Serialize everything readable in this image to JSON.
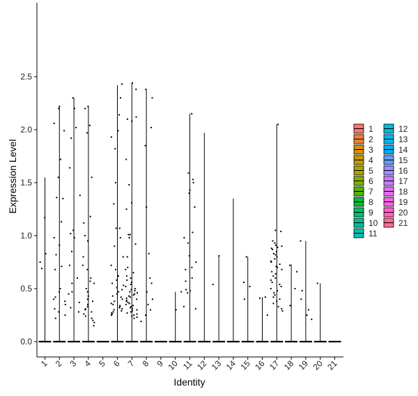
{
  "chart_data": {
    "type": "violin-jitter",
    "xlabel": "Identity",
    "ylabel": "Expression Level",
    "ylim": [
      -0.1,
      2.55
    ],
    "y_ticks": [
      0.0,
      0.5,
      1.0,
      1.5,
      2.0,
      2.5
    ],
    "y_tick_labels": [
      "0.0",
      "0.5",
      "1.0",
      "1.5",
      "2.0",
      "2.5"
    ],
    "categories": [
      "1",
      "2",
      "3",
      "4",
      "5",
      "6",
      "7",
      "8",
      "9",
      "10",
      "11",
      "12",
      "13",
      "14",
      "15",
      "16",
      "17",
      "18",
      "19",
      "20",
      "21"
    ],
    "max_values": [
      1.55,
      2.22,
      2.3,
      2.22,
      0.0,
      2.42,
      2.44,
      2.38,
      0.0,
      0.47,
      2.15,
      1.97,
      0.81,
      1.35,
      0.8,
      0.42,
      2.05,
      0.73,
      0.95,
      0.55,
      0.0
    ],
    "legend_colors": [
      "#F8766D",
      "#EB8335",
      "#DA8E00",
      "#C49A00",
      "#A9A400",
      "#86AC00",
      "#53B400",
      "#00BA38",
      "#00BE6D",
      "#00C094",
      "#00C0B8",
      "#00BDD6",
      "#00B6EB",
      "#00ABFD",
      "#619CFF",
      "#9D8FFF",
      "#C77CFF",
      "#E46DF5",
      "#F564E3",
      "#FF62C7",
      "#FF6C91"
    ],
    "points": [
      {
        "cat": 1,
        "y": 1.17
      },
      {
        "cat": 1,
        "y": 0.83
      },
      {
        "cat": 1,
        "y": 0.75
      },
      {
        "cat": 1,
        "y": 0.69
      },
      {
        "cat": 2,
        "y": 2.2
      },
      {
        "cat": 2,
        "y": 2.22
      },
      {
        "cat": 2,
        "y": 2.06
      },
      {
        "cat": 2,
        "y": 1.99
      },
      {
        "cat": 2,
        "y": 1.72
      },
      {
        "cat": 2,
        "y": 1.55
      },
      {
        "cat": 2,
        "y": 1.36
      },
      {
        "cat": 2,
        "y": 1.35
      },
      {
        "cat": 2,
        "y": 1.13
      },
      {
        "cat": 2,
        "y": 0.98
      },
      {
        "cat": 2,
        "y": 0.91
      },
      {
        "cat": 2,
        "y": 0.82
      },
      {
        "cat": 2,
        "y": 0.71
      },
      {
        "cat": 2,
        "y": 0.68
      },
      {
        "cat": 2,
        "y": 0.5
      },
      {
        "cat": 2,
        "y": 0.47
      },
      {
        "cat": 2,
        "y": 0.42
      },
      {
        "cat": 2,
        "y": 0.4
      },
      {
        "cat": 2,
        "y": 0.38
      },
      {
        "cat": 2,
        "y": 0.35
      },
      {
        "cat": 2,
        "y": 0.31
      },
      {
        "cat": 2,
        "y": 0.28
      },
      {
        "cat": 2,
        "y": 0.25
      },
      {
        "cat": 2,
        "y": 0.22
      },
      {
        "cat": 3,
        "y": 2.3
      },
      {
        "cat": 3,
        "y": 2.2
      },
      {
        "cat": 3,
        "y": 2.02
      },
      {
        "cat": 3,
        "y": 1.92
      },
      {
        "cat": 3,
        "y": 1.64
      },
      {
        "cat": 3,
        "y": 1.38
      },
      {
        "cat": 3,
        "y": 1.05
      },
      {
        "cat": 3,
        "y": 1.02
      },
      {
        "cat": 3,
        "y": 0.98
      },
      {
        "cat": 3,
        "y": 0.85
      },
      {
        "cat": 3,
        "y": 0.72
      },
      {
        "cat": 3,
        "y": 0.6
      },
      {
        "cat": 3,
        "y": 0.55
      },
      {
        "cat": 3,
        "y": 0.47
      },
      {
        "cat": 3,
        "y": 0.45
      },
      {
        "cat": 3,
        "y": 0.37
      },
      {
        "cat": 3,
        "y": 0.32
      },
      {
        "cat": 3,
        "y": 0.28
      },
      {
        "cat": 4,
        "y": 2.22
      },
      {
        "cat": 4,
        "y": 2.2
      },
      {
        "cat": 4,
        "y": 2.04
      },
      {
        "cat": 4,
        "y": 1.97
      },
      {
        "cat": 4,
        "y": 1.55
      },
      {
        "cat": 4,
        "y": 1.18
      },
      {
        "cat": 4,
        "y": 1.12
      },
      {
        "cat": 4,
        "y": 1.0
      },
      {
        "cat": 4,
        "y": 0.95
      },
      {
        "cat": 4,
        "y": 0.8
      },
      {
        "cat": 4,
        "y": 0.72
      },
      {
        "cat": 4,
        "y": 0.68
      },
      {
        "cat": 4,
        "y": 0.6
      },
      {
        "cat": 4,
        "y": 0.57
      },
      {
        "cat": 4,
        "y": 0.55
      },
      {
        "cat": 4,
        "y": 0.5
      },
      {
        "cat": 4,
        "y": 0.47
      },
      {
        "cat": 4,
        "y": 0.43
      },
      {
        "cat": 4,
        "y": 0.4
      },
      {
        "cat": 4,
        "y": 0.38
      },
      {
        "cat": 4,
        "y": 0.35
      },
      {
        "cat": 4,
        "y": 0.33
      },
      {
        "cat": 4,
        "y": 0.31
      },
      {
        "cat": 4,
        "y": 0.3
      },
      {
        "cat": 4,
        "y": 0.28
      },
      {
        "cat": 4,
        "y": 0.26
      },
      {
        "cat": 4,
        "y": 0.24
      },
      {
        "cat": 4,
        "y": 0.22
      },
      {
        "cat": 4,
        "y": 0.2
      },
      {
        "cat": 4,
        "y": 0.18
      },
      {
        "cat": 4,
        "y": 0.15
      },
      {
        "cat": 6,
        "y": 2.43
      },
      {
        "cat": 6,
        "y": 2.3
      },
      {
        "cat": 6,
        "y": 2.14
      },
      {
        "cat": 6,
        "y": 1.99
      },
      {
        "cat": 6,
        "y": 1.93
      },
      {
        "cat": 6,
        "y": 1.82
      },
      {
        "cat": 6,
        "y": 1.5
      },
      {
        "cat": 6,
        "y": 1.3
      },
      {
        "cat": 6,
        "y": 1.07
      },
      {
        "cat": 6,
        "y": 1.07
      },
      {
        "cat": 6,
        "y": 0.98
      },
      {
        "cat": 6,
        "y": 0.9
      },
      {
        "cat": 6,
        "y": 0.8
      },
      {
        "cat": 6,
        "y": 0.72
      },
      {
        "cat": 6,
        "y": 0.68
      },
      {
        "cat": 6,
        "y": 0.62
      },
      {
        "cat": 6,
        "y": 0.58
      },
      {
        "cat": 6,
        "y": 0.55
      },
      {
        "cat": 6,
        "y": 0.53
      },
      {
        "cat": 6,
        "y": 0.51
      },
      {
        "cat": 6,
        "y": 0.49
      },
      {
        "cat": 6,
        "y": 0.47
      },
      {
        "cat": 6,
        "y": 0.45
      },
      {
        "cat": 6,
        "y": 0.43
      },
      {
        "cat": 6,
        "y": 0.42
      },
      {
        "cat": 6,
        "y": 0.4
      },
      {
        "cat": 6,
        "y": 0.38
      },
      {
        "cat": 6,
        "y": 0.36
      },
      {
        "cat": 6,
        "y": 0.35
      },
      {
        "cat": 6,
        "y": 0.34
      },
      {
        "cat": 6,
        "y": 0.33
      },
      {
        "cat": 6,
        "y": 0.32
      },
      {
        "cat": 6,
        "y": 0.31
      },
      {
        "cat": 6,
        "y": 0.3
      },
      {
        "cat": 6,
        "y": 0.29
      },
      {
        "cat": 6,
        "y": 0.28
      },
      {
        "cat": 6,
        "y": 0.27
      },
      {
        "cat": 6,
        "y": 0.26
      },
      {
        "cat": 6,
        "y": 0.25
      },
      {
        "cat": 7,
        "y": 2.44
      },
      {
        "cat": 7,
        "y": 2.38
      },
      {
        "cat": 7,
        "y": 2.12
      },
      {
        "cat": 7,
        "y": 2.1
      },
      {
        "cat": 7,
        "y": 2.08
      },
      {
        "cat": 7,
        "y": 1.72
      },
      {
        "cat": 7,
        "y": 1.48
      },
      {
        "cat": 7,
        "y": 1.31
      },
      {
        "cat": 7,
        "y": 1.25
      },
      {
        "cat": 7,
        "y": 1.01
      },
      {
        "cat": 7,
        "y": 1.01
      },
      {
        "cat": 7,
        "y": 0.98
      },
      {
        "cat": 7,
        "y": 0.92
      },
      {
        "cat": 7,
        "y": 0.8
      },
      {
        "cat": 7,
        "y": 0.7
      },
      {
        "cat": 7,
        "y": 0.68
      },
      {
        "cat": 7,
        "y": 0.65
      },
      {
        "cat": 7,
        "y": 0.62
      },
      {
        "cat": 7,
        "y": 0.6
      },
      {
        "cat": 7,
        "y": 0.58
      },
      {
        "cat": 7,
        "y": 0.56
      },
      {
        "cat": 7,
        "y": 0.54
      },
      {
        "cat": 7,
        "y": 0.52
      },
      {
        "cat": 7,
        "y": 0.5
      },
      {
        "cat": 7,
        "y": 0.49
      },
      {
        "cat": 7,
        "y": 0.48
      },
      {
        "cat": 7,
        "y": 0.47
      },
      {
        "cat": 7,
        "y": 0.46
      },
      {
        "cat": 7,
        "y": 0.45
      },
      {
        "cat": 7,
        "y": 0.44
      },
      {
        "cat": 7,
        "y": 0.43
      },
      {
        "cat": 7,
        "y": 0.42
      },
      {
        "cat": 7,
        "y": 0.41
      },
      {
        "cat": 7,
        "y": 0.4
      },
      {
        "cat": 7,
        "y": 0.39
      },
      {
        "cat": 7,
        "y": 0.38
      },
      {
        "cat": 7,
        "y": 0.37
      },
      {
        "cat": 7,
        "y": 0.36
      },
      {
        "cat": 7,
        "y": 0.35
      },
      {
        "cat": 7,
        "y": 0.34
      },
      {
        "cat": 7,
        "y": 0.33
      },
      {
        "cat": 7,
        "y": 0.32
      },
      {
        "cat": 7,
        "y": 0.31
      },
      {
        "cat": 7,
        "y": 0.3
      },
      {
        "cat": 7,
        "y": 0.29
      },
      {
        "cat": 7,
        "y": 0.28
      },
      {
        "cat": 7,
        "y": 0.27
      },
      {
        "cat": 7,
        "y": 0.26
      },
      {
        "cat": 7,
        "y": 0.25
      },
      {
        "cat": 7,
        "y": 0.24
      },
      {
        "cat": 7,
        "y": 0.23
      },
      {
        "cat": 7,
        "y": 0.22
      },
      {
        "cat": 8,
        "y": 2.38
      },
      {
        "cat": 8,
        "y": 2.3
      },
      {
        "cat": 8,
        "y": 2.02
      },
      {
        "cat": 8,
        "y": 1.85
      },
      {
        "cat": 8,
        "y": 1.27
      },
      {
        "cat": 8,
        "y": 0.83
      },
      {
        "cat": 8,
        "y": 0.6
      },
      {
        "cat": 8,
        "y": 0.55
      },
      {
        "cat": 8,
        "y": 0.47
      },
      {
        "cat": 8,
        "y": 0.4
      },
      {
        "cat": 8,
        "y": 0.35
      },
      {
        "cat": 8,
        "y": 0.3
      },
      {
        "cat": 8,
        "y": 0.25
      },
      {
        "cat": 8,
        "y": 0.19
      },
      {
        "cat": 10,
        "y": 0.47
      },
      {
        "cat": 10,
        "y": 0.3
      },
      {
        "cat": 11,
        "y": 2.15
      },
      {
        "cat": 11,
        "y": 1.59
      },
      {
        "cat": 11,
        "y": 1.53
      },
      {
        "cat": 11,
        "y": 1.5
      },
      {
        "cat": 11,
        "y": 1.43
      },
      {
        "cat": 11,
        "y": 1.4
      },
      {
        "cat": 11,
        "y": 1.27
      },
      {
        "cat": 11,
        "y": 1.03
      },
      {
        "cat": 11,
        "y": 0.98
      },
      {
        "cat": 11,
        "y": 0.93
      },
      {
        "cat": 11,
        "y": 0.81
      },
      {
        "cat": 11,
        "y": 0.75
      },
      {
        "cat": 11,
        "y": 0.7
      },
      {
        "cat": 11,
        "y": 0.68
      },
      {
        "cat": 11,
        "y": 0.6
      },
      {
        "cat": 11,
        "y": 0.57
      },
      {
        "cat": 11,
        "y": 0.49
      },
      {
        "cat": 11,
        "y": 0.48
      },
      {
        "cat": 11,
        "y": 0.46
      },
      {
        "cat": 11,
        "y": 0.33
      },
      {
        "cat": 11,
        "y": 0.31
      },
      {
        "cat": 13,
        "y": 0.81
      },
      {
        "cat": 13,
        "y": 0.54
      },
      {
        "cat": 15,
        "y": 0.8
      },
      {
        "cat": 15,
        "y": 0.56
      },
      {
        "cat": 15,
        "y": 0.52
      },
      {
        "cat": 15,
        "y": 0.4
      },
      {
        "cat": 16,
        "y": 0.42
      },
      {
        "cat": 16,
        "y": 0.41
      },
      {
        "cat": 16,
        "y": 0.25
      },
      {
        "cat": 17,
        "y": 2.05
      },
      {
        "cat": 17,
        "y": 1.05
      },
      {
        "cat": 17,
        "y": 1.04
      },
      {
        "cat": 17,
        "y": 0.95
      },
      {
        "cat": 17,
        "y": 0.93
      },
      {
        "cat": 17,
        "y": 0.91
      },
      {
        "cat": 17,
        "y": 0.9
      },
      {
        "cat": 17,
        "y": 0.89
      },
      {
        "cat": 17,
        "y": 0.88
      },
      {
        "cat": 17,
        "y": 0.87
      },
      {
        "cat": 17,
        "y": 0.85
      },
      {
        "cat": 17,
        "y": 0.83
      },
      {
        "cat": 17,
        "y": 0.82
      },
      {
        "cat": 17,
        "y": 0.8
      },
      {
        "cat": 17,
        "y": 0.78
      },
      {
        "cat": 17,
        "y": 0.76
      },
      {
        "cat": 17,
        "y": 0.75
      },
      {
        "cat": 17,
        "y": 0.73
      },
      {
        "cat": 17,
        "y": 0.71
      },
      {
        "cat": 17,
        "y": 0.7
      },
      {
        "cat": 17,
        "y": 0.68
      },
      {
        "cat": 17,
        "y": 0.66
      },
      {
        "cat": 17,
        "y": 0.64
      },
      {
        "cat": 17,
        "y": 0.62
      },
      {
        "cat": 17,
        "y": 0.6
      },
      {
        "cat": 17,
        "y": 0.58
      },
      {
        "cat": 17,
        "y": 0.56
      },
      {
        "cat": 17,
        "y": 0.54
      },
      {
        "cat": 17,
        "y": 0.52
      },
      {
        "cat": 17,
        "y": 0.5
      },
      {
        "cat": 17,
        "y": 0.48
      },
      {
        "cat": 17,
        "y": 0.46
      },
      {
        "cat": 17,
        "y": 0.44
      },
      {
        "cat": 17,
        "y": 0.42
      },
      {
        "cat": 17,
        "y": 0.4
      },
      {
        "cat": 17,
        "y": 0.38
      },
      {
        "cat": 17,
        "y": 0.36
      },
      {
        "cat": 17,
        "y": 0.33
      },
      {
        "cat": 17,
        "y": 0.31
      },
      {
        "cat": 17,
        "y": 0.29
      },
      {
        "cat": 18,
        "y": 0.72
      },
      {
        "cat": 18,
        "y": 0.66
      },
      {
        "cat": 18,
        "y": 0.5
      },
      {
        "cat": 18,
        "y": 0.34
      },
      {
        "cat": 19,
        "y": 0.95
      },
      {
        "cat": 19,
        "y": 0.48
      },
      {
        "cat": 19,
        "y": 0.4
      },
      {
        "cat": 19,
        "y": 0.3
      },
      {
        "cat": 19,
        "y": 0.25
      },
      {
        "cat": 19,
        "y": 0.21
      },
      {
        "cat": 20,
        "y": 0.55
      }
    ]
  }
}
